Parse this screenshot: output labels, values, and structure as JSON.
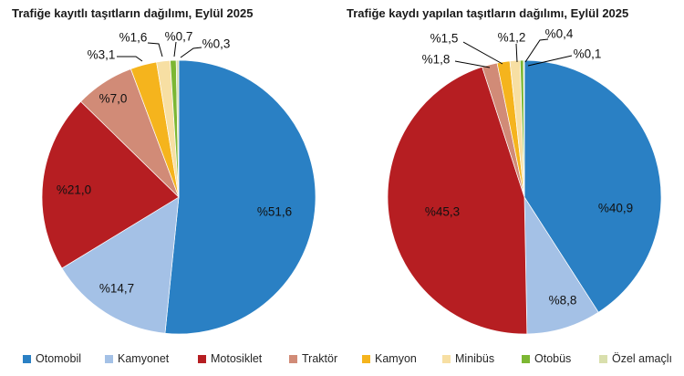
{
  "chart_data": [
    {
      "type": "pie",
      "title": "Trafiğe kayıtlı taşıtların dağılımı, Eylül 2025",
      "categories": [
        "Otomobil",
        "Kamyonet",
        "Motosiklet",
        "Traktör",
        "Kamyon",
        "Minibüs",
        "Otobüs",
        "Özel amaçlı"
      ],
      "values": [
        51.6,
        14.7,
        21.0,
        7.0,
        3.1,
        1.6,
        0.7,
        0.3
      ],
      "labels": [
        "%51,6",
        "%14,7",
        "%21,0",
        "%7,0",
        "%3,1",
        "%1,6",
        "%0,7",
        "%0,3"
      ],
      "colors": [
        "#2a80c4",
        "#a4c1e6",
        "#b61e22",
        "#d18b77",
        "#f5b41d",
        "#f7dfa3",
        "#7cb733",
        "#d9dfad"
      ],
      "unit": "percent",
      "legend_position": "bottom"
    },
    {
      "type": "pie",
      "title": "Trafiğe kaydı yapılan taşıtların dağılımı, Eylül 2025",
      "categories": [
        "Otomobil",
        "Kamyonet",
        "Motosiklet",
        "Traktör",
        "Kamyon",
        "Minibüs",
        "Otobüs",
        "Özel amaçlı"
      ],
      "values": [
        40.9,
        8.8,
        45.3,
        1.8,
        1.5,
        1.2,
        0.4,
        0.1
      ],
      "labels": [
        "%40,9",
        "%8,8",
        "%45,3",
        "%1,8",
        "%1,5",
        "%1,2",
        "%0,4",
        "%0,1"
      ],
      "colors": [
        "#2a80c4",
        "#a4c1e6",
        "#b61e22",
        "#d18b77",
        "#f5b41d",
        "#f7dfa3",
        "#7cb733",
        "#d9dfad"
      ],
      "unit": "percent",
      "legend_position": "bottom"
    }
  ],
  "legend": {
    "items": [
      {
        "label": "Otomobil",
        "color": "#2a80c4"
      },
      {
        "label": "Kamyonet",
        "color": "#a4c1e6"
      },
      {
        "label": "Motosiklet",
        "color": "#b61e22"
      },
      {
        "label": "Traktör",
        "color": "#d18b77"
      },
      {
        "label": "Kamyon",
        "color": "#f5b41d"
      },
      {
        "label": "Minibüs",
        "color": "#f7dfa3"
      },
      {
        "label": "Otobüs",
        "color": "#7cb733"
      },
      {
        "label": "Özel amaçlı",
        "color": "#d9dfad"
      }
    ]
  }
}
